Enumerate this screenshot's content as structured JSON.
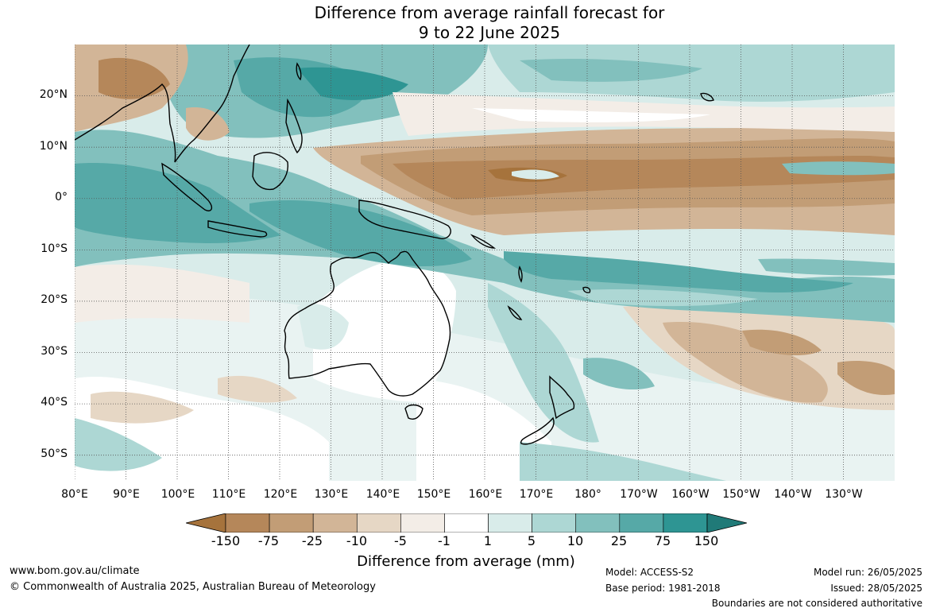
{
  "title": {
    "line1": "Difference from average rainfall forecast for",
    "line2": "9 to 22 June 2025"
  },
  "map": {
    "latitude_labels": [
      "20°N",
      "10°N",
      "0°",
      "10°S",
      "20°S",
      "30°S",
      "40°S",
      "50°S"
    ],
    "longitude_labels": [
      "80°E",
      "90°E",
      "100°E",
      "110°E",
      "120°E",
      "130°E",
      "140°E",
      "150°E",
      "160°E",
      "170°E",
      "180°",
      "170°W",
      "160°W",
      "150°W",
      "140°W",
      "130°W"
    ],
    "latitude_range": [
      -55,
      30
    ],
    "longitude_range": [
      80,
      240
    ]
  },
  "colorbar": {
    "title": "Difference from average (mm)",
    "tick_labels": [
      "-150",
      "-75",
      "-25",
      "-10",
      "-5",
      "-1",
      "1",
      "5",
      "10",
      "25",
      "75",
      "150"
    ],
    "colors": [
      "#a6733c",
      "#b5875a",
      "#c29d76",
      "#d2b597",
      "#e6d7c5",
      "#f3ede7",
      "#ffffff",
      "#d9ecea",
      "#add7d4",
      "#82c0bd",
      "#56a9a7",
      "#2e9593",
      "#207a78"
    ]
  },
  "footer": {
    "website": "www.bom.gov.au/climate",
    "copyright": "© Commonwealth of Australia 2025, Australian Bureau of Meteorology",
    "model": "Model: ACCESS-S2",
    "base_period": "Base period: 1981-2018",
    "model_run": "Model run: 26/05/2025",
    "issued": "Issued: 28/05/2025",
    "boundaries_note": "Boundaries are not considered authoritative"
  }
}
